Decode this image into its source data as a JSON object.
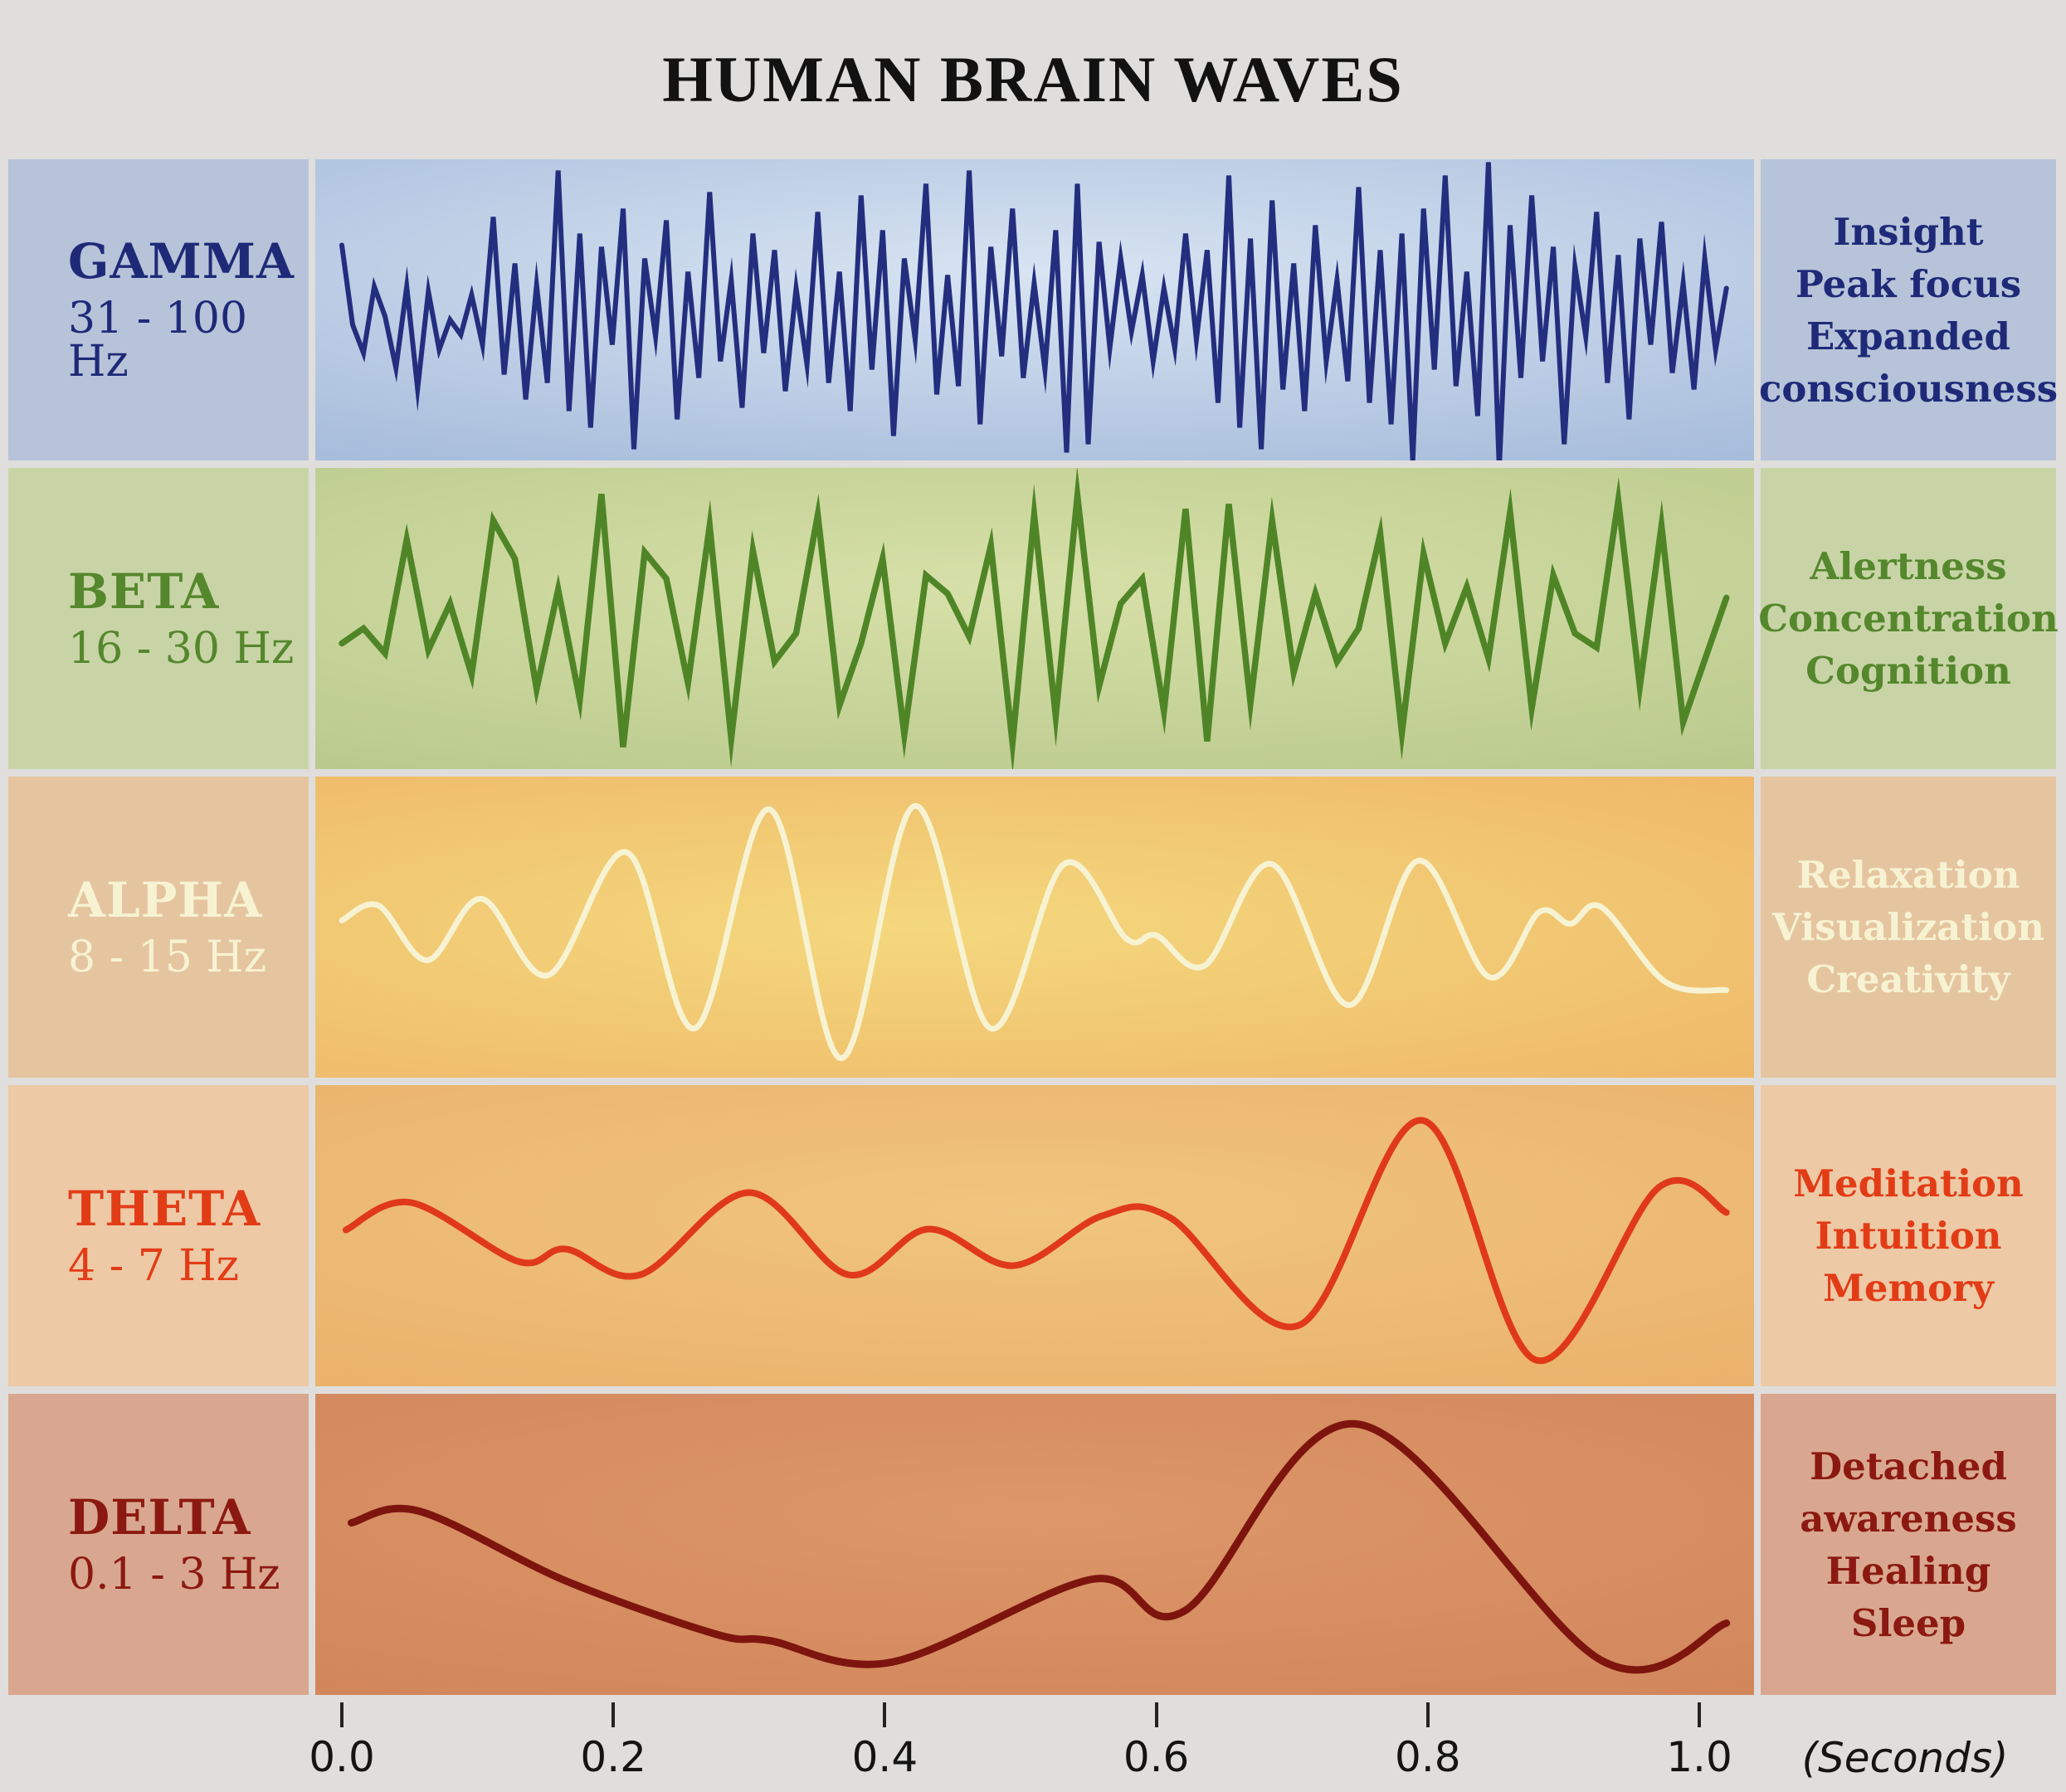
{
  "page": {
    "background": "#dfdedc"
  },
  "title": "HUMAN BRAIN WAVES",
  "axis": {
    "ticks": [
      {
        "time": 0.0,
        "label": "0.0"
      },
      {
        "time": 0.2,
        "label": "0.2"
      },
      {
        "time": 0.4,
        "label": "0.4"
      },
      {
        "time": 0.6,
        "label": "0.6"
      },
      {
        "time": 0.8,
        "label": "0.8"
      },
      {
        "time": 1.0,
        "label": "1.0"
      }
    ],
    "unit_label": "(Seconds)"
  },
  "rows": [
    {
      "name": "GAMMA",
      "range": "31 - 100 Hz",
      "traits": [
        "Insight",
        "Peak focus",
        "Expanded",
        "consciousness"
      ],
      "colors": {
        "label_bg": "#b7c3d8",
        "text": "#1e2a78",
        "wave": "#232e7e",
        "panel_center": "#d8e4f2",
        "panel_edge": "#8ca7cf",
        "panel_focus": "50% 38%"
      },
      "stroke_width": 6
    },
    {
      "name": "BETA",
      "range": "16 - 30 Hz",
      "traits": [
        "Alertness",
        "Concentration",
        "Cognition"
      ],
      "colors": {
        "label_bg": "#c8d4a6",
        "text": "#55872c",
        "wave": "#4f8527",
        "panel_center": "#d7e0a8",
        "panel_edge": "#a9bd7e",
        "panel_focus": "48% 40%"
      },
      "stroke_width": 7.5
    },
    {
      "name": "ALPHA",
      "range": "8 - 15 Hz",
      "traits": [
        "Relaxation",
        "Visualization",
        "Creativity"
      ],
      "colors": {
        "label_bg": "#e5c5a0",
        "text": "#f7f3d2",
        "wave": "#f7f3d2",
        "panel_center": "#f4d87e",
        "panel_edge": "#eba65c",
        "panel_focus": "42% 50%"
      },
      "stroke_width": 7
    },
    {
      "name": "THETA",
      "range": "4 - 7 Hz",
      "traits": [
        "Meditation",
        "Intuition",
        "Memory"
      ],
      "colors": {
        "label_bg": "#eec9a5",
        "text": "#e23c17",
        "wave": "#e0391a",
        "panel_center": "#f0c57e",
        "panel_edge": "#e7a660",
        "panel_focus": "50% 42%"
      },
      "stroke_width": 8
    },
    {
      "name": "DELTA",
      "range": "0.1 - 3 Hz",
      "traits": [
        "Detached",
        "awareness",
        "Healing",
        "Sleep"
      ],
      "colors": {
        "label_bg": "#d9a78f",
        "text": "#8c1911",
        "wave": "#7d150e",
        "panel_center": "#dc9769",
        "panel_edge": "#cd7c54",
        "panel_focus": "50% 40%"
      },
      "stroke_width": 9
    }
  ],
  "chart_data": [
    {
      "type": "line",
      "name": "Gamma 31-100 Hz",
      "style": "jagged",
      "xlabel": "(Seconds)",
      "x_range": [
        0,
        1.02
      ],
      "x_ticks": [
        0.0,
        0.2,
        0.4,
        0.6,
        0.8,
        1.0
      ],
      "values": [
        78,
        -18,
        -52,
        28,
        -8,
        -70,
        28,
        -95,
        22,
        -48,
        -12,
        -30,
        18,
        -42,
        112,
        -78,
        56,
        -108,
        30,
        -88,
        168,
        -122,
        92,
        -142,
        76,
        -42,
        122,
        -168,
        62,
        -32,
        108,
        -132,
        46,
        -82,
        142,
        -62,
        36,
        -118,
        92,
        -52,
        72,
        -98,
        26,
        -66,
        118,
        -88,
        46,
        -122,
        138,
        -72,
        96,
        -152,
        62,
        -36,
        152,
        -102,
        42,
        -92,
        168,
        -138,
        76,
        -56,
        122,
        -82,
        32,
        -72,
        96,
        -172,
        152,
        -162,
        82,
        -46,
        62,
        -26,
        42,
        -62,
        26,
        -46,
        92,
        -36,
        72,
        -112,
        162,
        -142,
        86,
        -168,
        132,
        -96,
        56,
        -122,
        102,
        -62,
        36,
        -86,
        148,
        -112,
        72,
        -138,
        92,
        -182,
        122,
        -72,
        162,
        -92,
        46,
        -128,
        178,
        -192,
        102,
        -82,
        138,
        -62,
        76,
        -162,
        52,
        -32,
        118,
        -88,
        66,
        -132,
        86,
        -42,
        106,
        -76,
        32,
        -96,
        62,
        -48,
        26
      ]
    },
    {
      "type": "line",
      "name": "Beta 16-30 Hz",
      "style": "jagged",
      "xlabel": "(Seconds)",
      "x_range": [
        0,
        1.02
      ],
      "x_ticks": [
        0.0,
        0.2,
        0.4,
        0.6,
        0.8,
        1.0
      ],
      "values": [
        -30,
        -12,
        -42,
        95,
        -38,
        18,
        -68,
        118,
        72,
        -85,
        35,
        -98,
        150,
        -155,
        80,
        48,
        -78,
        112,
        -145,
        82,
        -52,
        -18,
        125,
        -105,
        -30,
        72,
        -140,
        52,
        30,
        -22,
        88,
        -150,
        125,
        -118,
        148,
        -82,
        18,
        48,
        -112,
        132,
        -148,
        138,
        -102,
        118,
        -65,
        30,
        -52,
        -12,
        102,
        -138,
        78,
        -30,
        38,
        -48,
        128,
        -108,
        52,
        -18,
        -35,
        142,
        -82,
        112,
        -125,
        -50,
        25
      ]
    },
    {
      "type": "line",
      "name": "Alpha 8-15 Hz",
      "style": "smooth",
      "xlabel": "(Seconds)",
      "x_range": [
        0,
        1.02
      ],
      "x_ticks": [
        0.0,
        0.2,
        0.4,
        0.6,
        0.8,
        1.0
      ],
      "points": [
        [
          0.0,
          8
        ],
        [
          0.027,
          26
        ],
        [
          0.063,
          -40
        ],
        [
          0.103,
          34
        ],
        [
          0.152,
          -58
        ],
        [
          0.21,
          90
        ],
        [
          0.26,
          -122
        ],
        [
          0.315,
          142
        ],
        [
          0.368,
          -158
        ],
        [
          0.422,
          146
        ],
        [
          0.478,
          -122
        ],
        [
          0.532,
          76
        ],
        [
          0.578,
          -14
        ],
        [
          0.6,
          -10
        ],
        [
          0.636,
          -46
        ],
        [
          0.685,
          76
        ],
        [
          0.742,
          -94
        ],
        [
          0.793,
          80
        ],
        [
          0.845,
          -60
        ],
        [
          0.882,
          18
        ],
        [
          0.905,
          4
        ],
        [
          0.928,
          24
        ],
        [
          0.975,
          -66
        ],
        [
          1.02,
          -76
        ]
      ]
    },
    {
      "type": "line",
      "name": "Theta 4-7 Hz",
      "style": "smooth",
      "xlabel": "(Seconds)",
      "x_range": [
        0,
        1.02
      ],
      "x_ticks": [
        0.0,
        0.2,
        0.4,
        0.6,
        0.8,
        1.0
      ],
      "points": [
        [
          0.003,
          7
        ],
        [
          0.051,
          40
        ],
        [
          0.13,
          -31
        ],
        [
          0.165,
          -16
        ],
        [
          0.22,
          -47
        ],
        [
          0.3,
          52
        ],
        [
          0.373,
          -47
        ],
        [
          0.432,
          8
        ],
        [
          0.495,
          -36
        ],
        [
          0.56,
          24
        ],
        [
          0.61,
          22
        ],
        [
          0.705,
          -108
        ],
        [
          0.796,
          139
        ],
        [
          0.88,
          -150
        ],
        [
          0.97,
          58
        ],
        [
          1.02,
          28
        ]
      ]
    },
    {
      "type": "line",
      "name": "Delta 0.1-3 Hz",
      "style": "smooth",
      "xlabel": "(Seconds)",
      "x_range": [
        0,
        1.02
      ],
      "x_ticks": [
        0.0,
        0.2,
        0.4,
        0.6,
        0.8,
        1.0
      ],
      "points": [
        [
          0.007,
          26
        ],
        [
          0.057,
          40
        ],
        [
          0.165,
          -44
        ],
        [
          0.275,
          -108
        ],
        [
          0.315,
          -116
        ],
        [
          0.405,
          -142
        ],
        [
          0.553,
          -42
        ],
        [
          0.621,
          -80
        ],
        [
          0.748,
          145
        ],
        [
          0.928,
          -140
        ],
        [
          1.02,
          -95
        ]
      ]
    }
  ]
}
